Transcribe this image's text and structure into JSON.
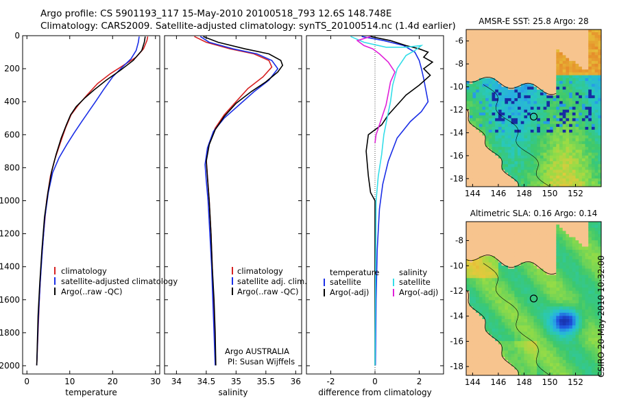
{
  "header": {
    "line1": "Argo profile: CS 5901193_117 15-May-2010 20100518_793 12.6S 148.748E",
    "line2": "Climatology: CARS2009. Satellite-adjusted climatology: synTS_20100514.nc (1.4d earlier)"
  },
  "side_note": "CSIRO 20-May-2010 10:32:00",
  "colors": {
    "climatology": "#d62020",
    "satellite": "#1a2ee6",
    "argo": "#000000",
    "sat_salinity": "#33dde8",
    "argo_salinity": "#e020d8"
  },
  "chart_data": [
    {
      "type": "line",
      "id": "temperature",
      "xlabel": "temperature",
      "ylabel": "",
      "xlim": [
        -1,
        31
      ],
      "ylim": [
        2050,
        0
      ],
      "xticks": [
        0,
        10,
        20,
        30
      ],
      "yticks": [
        0,
        200,
        400,
        600,
        800,
        1000,
        1200,
        1400,
        1600,
        1800,
        2000
      ],
      "legend": [
        "climatology",
        "satellite-adjusted climatology",
        "Argo(..raw -QC)"
      ],
      "legend_placement": "lower-right",
      "series": [
        {
          "name": "climatology",
          "color": "#d62020",
          "points": [
            [
              28.2,
              5
            ],
            [
              28.0,
              30
            ],
            [
              27.2,
              80
            ],
            [
              25.5,
              130
            ],
            [
              22.5,
              180
            ],
            [
              19.5,
              230
            ],
            [
              16.5,
              290
            ],
            [
              14.0,
              360
            ],
            [
              12.0,
              420
            ],
            [
              10.3,
              480
            ],
            [
              9.0,
              560
            ],
            [
              7.8,
              650
            ],
            [
              6.5,
              750
            ],
            [
              5.5,
              850
            ],
            [
              4.6,
              1000
            ],
            [
              3.9,
              1200
            ],
            [
              3.3,
              1400
            ],
            [
              2.9,
              1600
            ],
            [
              2.6,
              1800
            ],
            [
              2.3,
              1998
            ]
          ]
        },
        {
          "name": "satellite-adjusted climatology",
          "color": "#1a2ee6",
          "points": [
            [
              26.2,
              5
            ],
            [
              26.0,
              40
            ],
            [
              25.5,
              90
            ],
            [
              24.3,
              140
            ],
            [
              22.3,
              190
            ],
            [
              20.0,
              250
            ],
            [
              17.8,
              330
            ],
            [
              16.0,
              400
            ],
            [
              14.4,
              460
            ],
            [
              12.8,
              520
            ],
            [
              11.0,
              590
            ],
            [
              9.3,
              660
            ],
            [
              7.5,
              740
            ],
            [
              6.0,
              830
            ],
            [
              5.0,
              950
            ],
            [
              4.2,
              1100
            ],
            [
              3.6,
              1300
            ],
            [
              3.1,
              1500
            ],
            [
              2.7,
              1700
            ],
            [
              2.3,
              1998
            ]
          ]
        },
        {
          "name": "Argo(..raw -QC)",
          "color": "#000000",
          "points": [
            [
              27.6,
              5
            ],
            [
              27.4,
              40
            ],
            [
              26.8,
              90
            ],
            [
              24.8,
              150
            ],
            [
              21.8,
              210
            ],
            [
              18.5,
              270
            ],
            [
              15.6,
              330
            ],
            [
              13.4,
              380
            ],
            [
              11.5,
              430
            ],
            [
              10.2,
              480
            ],
            [
              9.2,
              540
            ],
            [
              8.0,
              620
            ],
            [
              6.8,
              720
            ],
            [
              5.8,
              820
            ],
            [
              4.9,
              950
            ],
            [
              4.1,
              1100
            ],
            [
              3.5,
              1300
            ],
            [
              3.0,
              1500
            ],
            [
              2.6,
              1700
            ],
            [
              2.3,
              1998
            ]
          ]
        }
      ]
    },
    {
      "type": "line",
      "id": "salinity",
      "xlabel": "salinity",
      "ylabel": "",
      "xlim": [
        33.8,
        36.1
      ],
      "ylim": [
        2050,
        0
      ],
      "xticks": [
        34,
        34.5,
        35,
        35.5,
        36
      ],
      "yticks": [
        0,
        200,
        400,
        600,
        800,
        1000,
        1200,
        1400,
        1600,
        1800,
        2000
      ],
      "legend": [
        "climatology",
        "satellite adj. clim.",
        "Argo(..raw -QC)"
      ],
      "legend_placement": "lower-right",
      "annotation": [
        "Argo AUSTRALIA",
        "PI: Susan Wijffels"
      ],
      "series": [
        {
          "name": "climatology",
          "color": "#d62020",
          "points": [
            [
              34.3,
              5
            ],
            [
              34.5,
              40
            ],
            [
              34.9,
              80
            ],
            [
              35.3,
              110
            ],
            [
              35.55,
              150
            ],
            [
              35.6,
              190
            ],
            [
              35.45,
              250
            ],
            [
              35.2,
              320
            ],
            [
              35.0,
              400
            ],
            [
              34.8,
              480
            ],
            [
              34.65,
              560
            ],
            [
              34.55,
              650
            ],
            [
              34.5,
              750
            ],
            [
              34.52,
              850
            ],
            [
              34.55,
              1000
            ],
            [
              34.58,
              1200
            ],
            [
              34.6,
              1400
            ],
            [
              34.62,
              1600
            ],
            [
              34.64,
              1800
            ],
            [
              34.66,
              1998
            ]
          ]
        },
        {
          "name": "satellite adj. clim.",
          "color": "#1a2ee6",
          "points": [
            [
              34.4,
              5
            ],
            [
              34.55,
              40
            ],
            [
              34.95,
              80
            ],
            [
              35.35,
              110
            ],
            [
              35.6,
              150
            ],
            [
              35.7,
              200
            ],
            [
              35.55,
              270
            ],
            [
              35.3,
              340
            ],
            [
              35.05,
              420
            ],
            [
              34.8,
              500
            ],
            [
              34.62,
              580
            ],
            [
              34.52,
              680
            ],
            [
              34.48,
              780
            ],
            [
              34.5,
              880
            ],
            [
              34.53,
              1000
            ],
            [
              34.56,
              1200
            ],
            [
              34.59,
              1400
            ],
            [
              34.61,
              1600
            ],
            [
              34.63,
              1800
            ],
            [
              34.65,
              1998
            ]
          ]
        },
        {
          "name": "Argo(..raw -QC)",
          "color": "#000000",
          "points": [
            [
              34.45,
              5
            ],
            [
              34.7,
              40
            ],
            [
              35.15,
              80
            ],
            [
              35.55,
              110
            ],
            [
              35.75,
              150
            ],
            [
              35.78,
              180
            ],
            [
              35.7,
              220
            ],
            [
              35.5,
              280
            ],
            [
              35.25,
              340
            ],
            [
              35.0,
              410
            ],
            [
              34.8,
              490
            ],
            [
              34.65,
              570
            ],
            [
              34.55,
              660
            ],
            [
              34.5,
              760
            ],
            [
              34.52,
              860
            ],
            [
              34.55,
              1000
            ],
            [
              34.58,
              1200
            ],
            [
              34.6,
              1400
            ],
            [
              34.63,
              1600
            ],
            [
              34.65,
              1800
            ],
            [
              34.66,
              1998
            ]
          ]
        }
      ]
    },
    {
      "type": "line",
      "id": "difference",
      "xlabel": "difference from climatology",
      "ylabel": "",
      "xlim": [
        -3.1,
        3.1
      ],
      "ylim": [
        2050,
        0
      ],
      "xticks": [
        -2,
        0,
        2
      ],
      "yticks": [
        0,
        200,
        400,
        600,
        800,
        1000,
        1200,
        1400,
        1600,
        1800,
        2000
      ],
      "legend": [
        "temperature",
        "satellite",
        "Argo(-adj)",
        "salinity",
        "satellite",
        "Argo(-adj)"
      ],
      "legend_placement": "lower-center",
      "series": [
        {
          "name": "satellite",
          "group": "temperature",
          "color": "#1a2ee6",
          "points": [
            [
              -0.6,
              5
            ],
            [
              0.4,
              30
            ],
            [
              1.3,
              60
            ],
            [
              1.8,
              100
            ],
            [
              2.0,
              150
            ],
            [
              2.1,
              200
            ],
            [
              2.2,
              260
            ],
            [
              2.3,
              330
            ],
            [
              2.4,
              400
            ],
            [
              2.1,
              460
            ],
            [
              1.6,
              520
            ],
            [
              1.0,
              620
            ],
            [
              0.6,
              760
            ],
            [
              0.35,
              900
            ],
            [
              0.2,
              1050
            ],
            [
              0.1,
              1300
            ],
            [
              0.05,
              1600
            ],
            [
              0.02,
              1998
            ]
          ]
        },
        {
          "name": "Argo(-adj)",
          "group": "temperature",
          "color": "#000000",
          "points": [
            [
              -0.2,
              5
            ],
            [
              0.7,
              30
            ],
            [
              1.4,
              60
            ],
            [
              2.0,
              80
            ],
            [
              2.4,
              100
            ],
            [
              2.2,
              130
            ],
            [
              2.6,
              160
            ],
            [
              2.2,
              200
            ],
            [
              2.5,
              240
            ],
            [
              2.0,
              300
            ],
            [
              1.4,
              360
            ],
            [
              1.0,
              420
            ],
            [
              0.6,
              480
            ],
            [
              0.3,
              540
            ],
            [
              -0.3,
              600
            ],
            [
              -0.4,
              700
            ],
            [
              -0.3,
              850
            ],
            [
              -0.2,
              950
            ],
            [
              0.0,
              1000
            ],
            [
              0.0,
              1998
            ]
          ]
        },
        {
          "name": "satellite",
          "group": "salinity",
          "color": "#33dde8",
          "points": [
            [
              -1.1,
              5
            ],
            [
              -0.5,
              40
            ],
            [
              0.5,
              70
            ],
            [
              1.4,
              70
            ],
            [
              2.1,
              60
            ],
            [
              1.8,
              90
            ],
            [
              1.4,
              120
            ],
            [
              1.0,
              200
            ],
            [
              0.8,
              300
            ],
            [
              0.7,
              400
            ],
            [
              0.55,
              500
            ],
            [
              0.4,
              600
            ],
            [
              0.3,
              720
            ],
            [
              0.15,
              850
            ],
            [
              0.05,
              1000
            ],
            [
              0.0,
              1998
            ]
          ]
        },
        {
          "name": "Argo(-adj)",
          "group": "salinity",
          "color": "#e020d8",
          "points": [
            [
              -0.2,
              5
            ],
            [
              -0.8,
              30
            ],
            [
              -0.5,
              60
            ],
            [
              -0.1,
              80
            ],
            [
              0.2,
              110
            ],
            [
              0.6,
              160
            ],
            [
              0.9,
              220
            ],
            [
              0.7,
              280
            ],
            [
              0.6,
              350
            ],
            [
              0.5,
              420
            ],
            [
              0.35,
              480
            ],
            [
              0.2,
              540
            ],
            [
              0.05,
              600
            ],
            [
              0.0,
              650
            ]
          ]
        }
      ]
    },
    {
      "type": "heatmap",
      "id": "sst-map",
      "title": "AMSR-E SST: 25.8 Argo: 28",
      "xlim": [
        143.5,
        154
      ],
      "ylim": [
        -18.7,
        -5
      ],
      "xticks": [
        144,
        146,
        148,
        150,
        152
      ],
      "yticks": [
        -6,
        -8,
        -10,
        -12,
        -14,
        -16,
        -18
      ],
      "marker": {
        "lon": 148.75,
        "lat": -12.6
      }
    },
    {
      "type": "heatmap",
      "id": "sla-map",
      "title": "Altimetric SLA: 0.16 Argo: 0.14",
      "xlim": [
        143.5,
        154
      ],
      "ylim": [
        -18.7,
        -6.5
      ],
      "xticks": [
        144,
        146,
        148,
        150,
        152
      ],
      "yticks": [
        -8,
        -10,
        -12,
        -14,
        -16,
        -18
      ],
      "marker": {
        "lon": 148.75,
        "lat": -12.6
      }
    }
  ]
}
